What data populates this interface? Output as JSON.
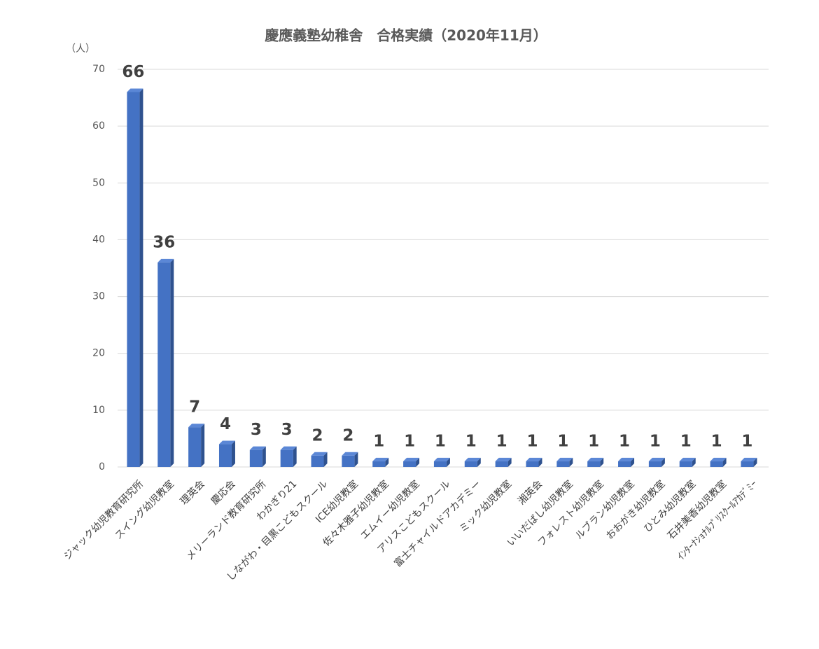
{
  "chart_data": {
    "type": "bar",
    "title": "慶應義塾幼稚舎　合格実績（2020年11月）",
    "y_unit": "（人）",
    "categories": [
      "ジャック幼児教育研究所",
      "スイング幼児教室",
      "理英会",
      "慶応会",
      "メリーランド教育研究所",
      "わかぎり21",
      "しながわ・目黒こどもスクール",
      "ICE幼児教室",
      "佐々木雅子幼児教室",
      "エムイー幼児教室",
      "アリスこどもスクール",
      "富士チャイルドアカデミー",
      "ミック幼児教室",
      "湘英会",
      "いいだばし幼児教室",
      "フォレスト幼児教室",
      "ルブラン幼児教室",
      "おおがき幼児教室",
      "ひとみ幼児教室",
      "石井美香幼児教室",
      "ｲﾝﾀｰﾅｼｮﾅﾙﾌﾟﾘｽｸｰﾙｱｶﾃﾞﾐｰ"
    ],
    "values": [
      66,
      36,
      7,
      4,
      3,
      3,
      2,
      2,
      1,
      1,
      1,
      1,
      1,
      1,
      1,
      1,
      1,
      1,
      1,
      1,
      1
    ],
    "color": "#4472c4",
    "ylim": [
      0,
      70
    ],
    "yticks": [
      0,
      10,
      20,
      30,
      40,
      50,
      60,
      70
    ],
    "grid": true,
    "data_labels": true
  }
}
